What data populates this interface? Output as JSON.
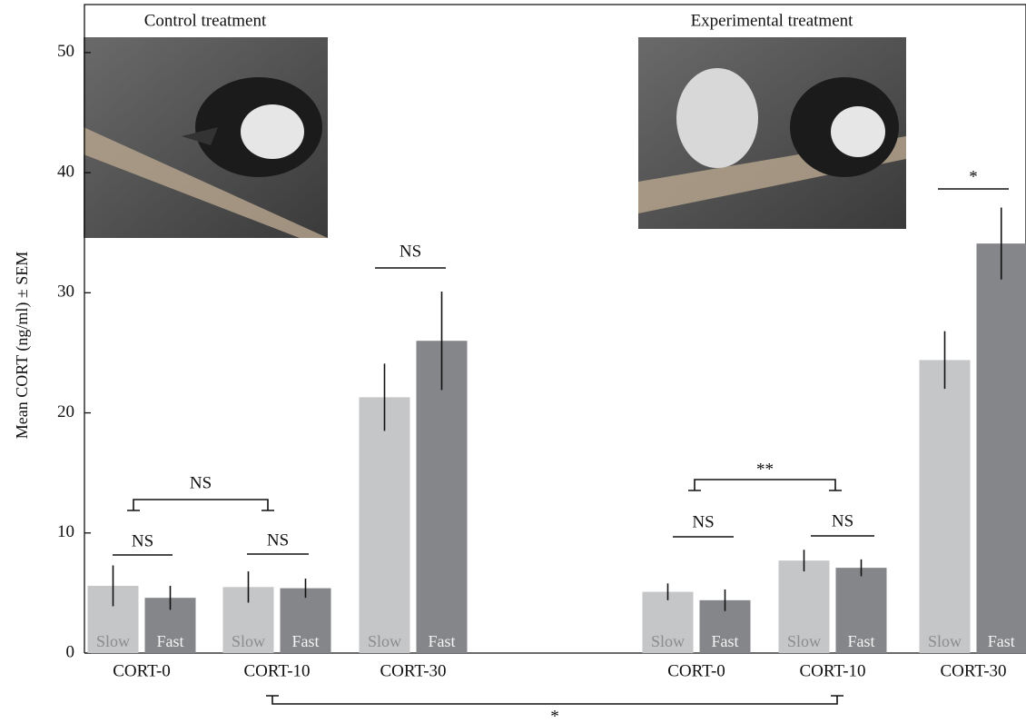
{
  "chart_data": {
    "type": "bar",
    "y_label": "Mean CORT (ng/ml) ± SEM",
    "treatments": [
      "Control treatment",
      "Experimental treatment"
    ],
    "categories": [
      "CORT-0",
      "CORT-10",
      "CORT-30",
      "CORT-0",
      "CORT-10",
      "CORT-30"
    ],
    "series": [
      {
        "name": "Slow",
        "color": "#c5c6c8",
        "values": [
          5.6,
          5.5,
          21.3,
          5.1,
          7.7,
          24.4
        ],
        "errors": [
          1.7,
          1.3,
          2.8,
          0.7,
          0.9,
          2.4
        ]
      },
      {
        "name": "Fast",
        "color": "#858689",
        "values": [
          4.6,
          5.4,
          26.0,
          4.4,
          7.1,
          34.1
        ],
        "errors": [
          1.0,
          0.8,
          4.1,
          0.9,
          0.7,
          3.0
        ]
      }
    ],
    "ylim": [
      0,
      54
    ],
    "yticks": [
      0,
      10,
      20,
      30,
      40,
      50
    ],
    "annotations": [
      "NS",
      "NS",
      "NS",
      "NS",
      "NS",
      "NS",
      "**",
      "*",
      "*"
    ]
  }
}
